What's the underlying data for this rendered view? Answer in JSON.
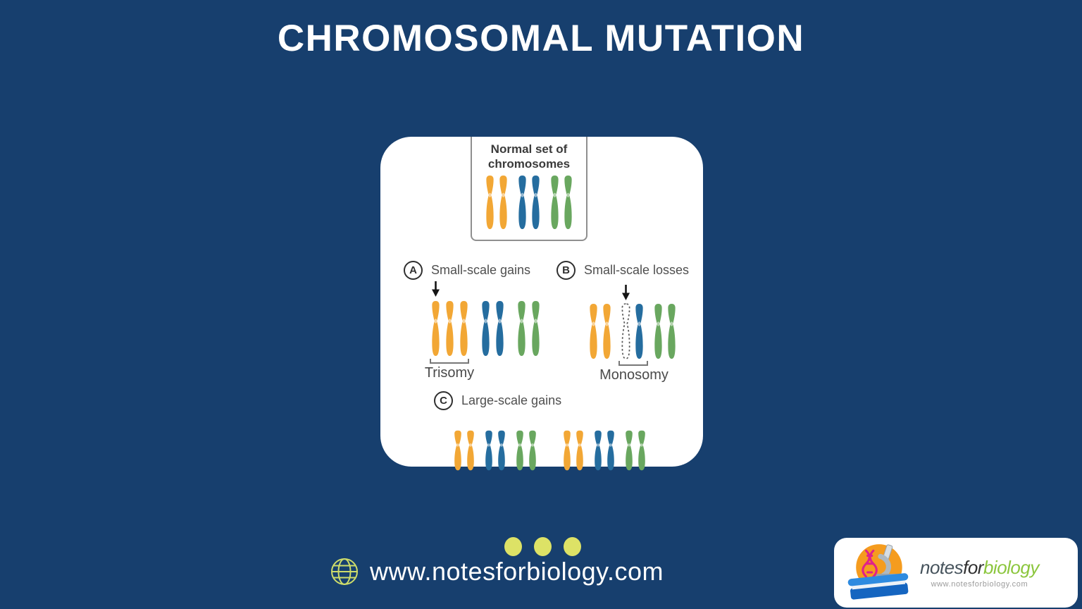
{
  "title": "CHROMOSOMAL MUTATION",
  "colors": {
    "background": "#173F6E",
    "card": "#FFFFFF",
    "orange": "#F2A735",
    "blue": "#256D9F",
    "green": "#69A75F",
    "dot": "#DDE266",
    "globe": "#CEDC6A"
  },
  "diagram": {
    "normal_set": {
      "title_line1": "Normal set of",
      "title_line2": "chromosomes",
      "chromosomes": [
        [
          "orange",
          "orange"
        ],
        [
          "blue",
          "blue"
        ],
        [
          "green",
          "green"
        ]
      ]
    },
    "section_a": {
      "letter": "A",
      "label": "Small-scale gains",
      "bracket_label": "Trisomy",
      "chromosomes": [
        [
          "orange",
          "orange",
          "orange"
        ],
        [
          "blue",
          "blue"
        ],
        [
          "green",
          "green"
        ]
      ]
    },
    "section_b": {
      "letter": "B",
      "label": "Small-scale losses",
      "bracket_label": "Monosomy",
      "chromosomes": [
        [
          "orange",
          "orange"
        ],
        [
          "dashed",
          "blue"
        ],
        [
          "green",
          "green"
        ]
      ]
    },
    "section_c": {
      "letter": "C",
      "label": "Large-scale gains",
      "chromosomes_left": [
        [
          "orange",
          "orange"
        ],
        [
          "blue",
          "blue"
        ],
        [
          "green",
          "green"
        ]
      ],
      "chromosomes_right": [
        [
          "orange",
          "orange"
        ],
        [
          "blue",
          "blue"
        ],
        [
          "green",
          "green"
        ]
      ]
    }
  },
  "footer": {
    "website": "www.notesforbiology.com",
    "dots_count": 3
  },
  "logo": {
    "word_notes": "notes",
    "word_for": "for",
    "word_biology": "biology",
    "website": "www.notesforbiology.com"
  }
}
